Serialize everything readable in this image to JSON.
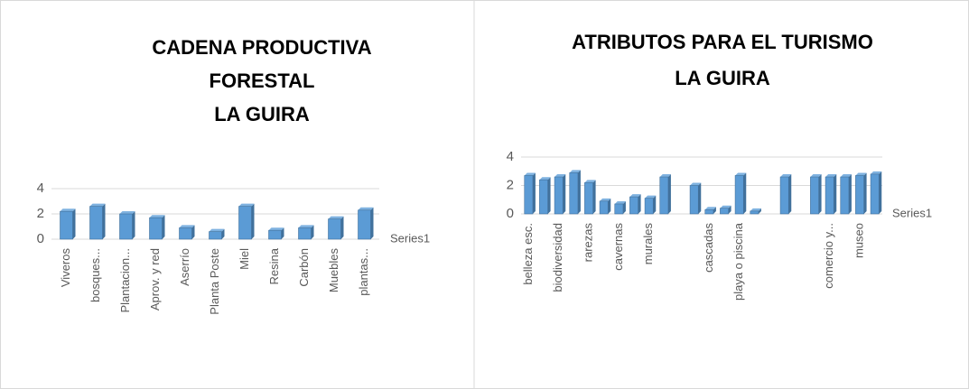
{
  "chart_data": [
    {
      "type": "bar",
      "title": [
        "CADENA PRODUCTIVA",
        "FORESTAL",
        "LA GUIRA"
      ],
      "categories": [
        "Viveros",
        "bosques...",
        "Plantacion...",
        "Aprov. y red",
        "Aserrío",
        "Planta Poste",
        "Miel",
        "Resina",
        "Carbón",
        "Muebles",
        "plantas..."
      ],
      "series": [
        {
          "name": "Series1",
          "color": "#5b9bd5",
          "values": [
            2.2,
            2.6,
            2.0,
            1.7,
            0.9,
            0.6,
            2.6,
            0.7,
            0.9,
            1.6,
            2.3
          ]
        }
      ],
      "ylim": [
        0,
        4
      ],
      "yticks": [
        0,
        2,
        4
      ],
      "grid": true
    },
    {
      "type": "bar",
      "title": [
        "ATRIBUTOS PARA EL TURISMO",
        "LA GUIRA"
      ],
      "categories": [
        "belleza esc.",
        null,
        "biodiversidad",
        null,
        "rarezas",
        null,
        "cavernas",
        null,
        "murales",
        null,
        null,
        null,
        "cascadas",
        null,
        "playa o piscina",
        null,
        null,
        null,
        null,
        null,
        "comercio y...",
        null,
        "museo",
        null
      ],
      "series": [
        {
          "name": "Series1",
          "color": "#5b9bd5",
          "values": [
            2.7,
            2.4,
            2.6,
            2.9,
            2.2,
            0.9,
            0.7,
            1.2,
            1.1,
            2.6,
            null,
            2.0,
            0.3,
            0.4,
            2.7,
            0.2,
            null,
            2.6,
            null,
            2.6,
            2.6,
            2.6,
            2.7,
            2.8
          ]
        }
      ],
      "ylim": [
        0,
        4
      ],
      "yticks": [
        0,
        2,
        4
      ],
      "grid": true
    }
  ]
}
